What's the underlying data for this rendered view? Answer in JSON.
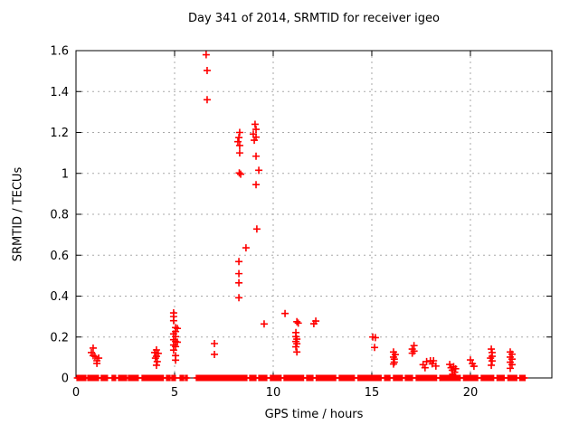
{
  "chart_data": {
    "type": "scatter",
    "title": "Day 341 of 2014, SRMTID for receiver igeo",
    "xlabel": "GPS time / hours",
    "ylabel": "SRMTID / TECUs",
    "xlim": [
      0,
      24.13
    ],
    "ylim": [
      0,
      1.6
    ],
    "xticks": [
      {
        "value": 0,
        "label": "0"
      },
      {
        "value": 5,
        "label": "5"
      },
      {
        "value": 10,
        "label": "10"
      },
      {
        "value": 15,
        "label": "15"
      },
      {
        "value": 20,
        "label": "20"
      }
    ],
    "yticks": [
      {
        "value": 0.0,
        "label": "0"
      },
      {
        "value": 0.2,
        "label": "0.2"
      },
      {
        "value": 0.4,
        "label": "0.4"
      },
      {
        "value": 0.6,
        "label": "0.6"
      },
      {
        "value": 0.8,
        "label": "0.8"
      },
      {
        "value": 1.0,
        "label": "1"
      },
      {
        "value": 1.2,
        "label": "1.2"
      },
      {
        "value": 1.4,
        "label": "1.4"
      },
      {
        "value": 1.6,
        "label": "1.6"
      }
    ],
    "grid": true,
    "legend": "none",
    "marker": "plus",
    "colors": {
      "marker": "#ff0000",
      "grid": "#a8a8a8",
      "axis": "#000000",
      "text": "#000000",
      "background": "#ffffff"
    },
    "series": [
      {
        "name": "SRMTID",
        "points": [
          [
            0.87,
            0.146
          ],
          [
            0.78,
            0.124
          ],
          [
            0.87,
            0.109
          ],
          [
            0.96,
            0.105
          ],
          [
            1.15,
            0.097
          ],
          [
            1.06,
            0.084
          ],
          [
            1.06,
            0.071
          ],
          [
            4.08,
            0.137
          ],
          [
            3.99,
            0.124
          ],
          [
            4.17,
            0.12
          ],
          [
            4.08,
            0.106
          ],
          [
            4.03,
            0.097
          ],
          [
            4.12,
            0.08
          ],
          [
            4.08,
            0.062
          ],
          [
            4.95,
            0.318
          ],
          [
            4.95,
            0.3
          ],
          [
            4.95,
            0.28
          ],
          [
            5.05,
            0.246
          ],
          [
            5.14,
            0.242
          ],
          [
            5.05,
            0.227
          ],
          [
            4.95,
            0.215
          ],
          [
            5.05,
            0.202
          ],
          [
            4.95,
            0.187
          ],
          [
            5.05,
            0.178
          ],
          [
            5.14,
            0.175
          ],
          [
            4.95,
            0.161
          ],
          [
            5.05,
            0.153
          ],
          [
            4.95,
            0.136
          ],
          [
            5.05,
            0.109
          ],
          [
            5.05,
            0.087
          ],
          [
            6.6,
            1.58
          ],
          [
            6.65,
            1.503
          ],
          [
            6.65,
            1.36
          ],
          [
            7.02,
            0.168
          ],
          [
            7.02,
            0.115
          ],
          [
            8.3,
            1.2
          ],
          [
            8.26,
            1.175
          ],
          [
            8.21,
            1.155
          ],
          [
            8.3,
            1.136
          ],
          [
            8.3,
            1.1
          ],
          [
            8.28,
            1.002
          ],
          [
            8.35,
            0.996
          ],
          [
            8.26,
            0.569
          ],
          [
            8.26,
            0.51
          ],
          [
            8.26,
            0.465
          ],
          [
            8.26,
            0.392
          ],
          [
            8.62,
            0.636
          ],
          [
            9.08,
            1.24
          ],
          [
            9.13,
            1.215
          ],
          [
            8.99,
            1.192
          ],
          [
            9.13,
            1.177
          ],
          [
            9.04,
            1.162
          ],
          [
            9.13,
            1.084
          ],
          [
            9.27,
            1.015
          ],
          [
            9.13,
            0.945
          ],
          [
            9.17,
            0.728
          ],
          [
            9.54,
            0.264
          ],
          [
            10.6,
            0.315
          ],
          [
            11.2,
            0.275
          ],
          [
            11.27,
            0.268
          ],
          [
            11.15,
            0.222
          ],
          [
            11.15,
            0.202
          ],
          [
            11.2,
            0.19
          ],
          [
            11.15,
            0.178
          ],
          [
            11.2,
            0.167
          ],
          [
            11.15,
            0.152
          ],
          [
            11.2,
            0.127
          ],
          [
            12.06,
            0.265
          ],
          [
            12.16,
            0.278
          ],
          [
            15.05,
            0.2
          ],
          [
            15.18,
            0.197
          ],
          [
            15.14,
            0.149
          ],
          [
            16.1,
            0.127
          ],
          [
            16.19,
            0.114
          ],
          [
            16.1,
            0.102
          ],
          [
            16.14,
            0.092
          ],
          [
            16.14,
            0.077
          ],
          [
            16.1,
            0.068
          ],
          [
            17.14,
            0.158
          ],
          [
            17.05,
            0.141
          ],
          [
            17.14,
            0.131
          ],
          [
            17.05,
            0.121
          ],
          [
            17.6,
            0.065
          ],
          [
            17.7,
            0.05
          ],
          [
            17.78,
            0.08
          ],
          [
            17.97,
            0.084
          ],
          [
            18.06,
            0.069
          ],
          [
            18.13,
            0.084
          ],
          [
            18.25,
            0.058
          ],
          [
            18.95,
            0.066
          ],
          [
            19.02,
            0.05
          ],
          [
            19.08,
            0.038
          ],
          [
            19.15,
            0.055
          ],
          [
            19.2,
            0.028
          ],
          [
            19.25,
            0.045
          ],
          [
            19.1,
            0.018
          ],
          [
            20.0,
            0.088
          ],
          [
            20.1,
            0.07
          ],
          [
            20.18,
            0.057
          ],
          [
            21.06,
            0.141
          ],
          [
            21.1,
            0.124
          ],
          [
            21.1,
            0.106
          ],
          [
            21.02,
            0.097
          ],
          [
            21.1,
            0.083
          ],
          [
            21.06,
            0.062
          ],
          [
            22.02,
            0.127
          ],
          [
            22.11,
            0.116
          ],
          [
            22.02,
            0.102
          ],
          [
            22.11,
            0.092
          ],
          [
            22.02,
            0.077
          ],
          [
            22.11,
            0.065
          ],
          [
            22.02,
            0.047
          ]
        ]
      }
    ],
    "baseline_band": {
      "y": 0,
      "step": 0.045,
      "segments": [
        [
          0.05,
          0.5
        ],
        [
          0.6,
          1.15
        ],
        [
          1.28,
          1.61
        ],
        [
          1.83,
          2.02
        ],
        [
          2.16,
          2.57
        ],
        [
          2.66,
          3.17
        ],
        [
          3.35,
          4.45
        ],
        [
          4.59,
          4.77
        ],
        [
          4.86,
          5.05
        ],
        [
          5.28,
          5.46
        ],
        [
          5.55,
          5.64
        ],
        [
          6.1,
          8.67
        ],
        [
          8.81,
          9.13
        ],
        [
          9.27,
          9.68
        ],
        [
          9.86,
          10.41
        ],
        [
          10.55,
          11.55
        ],
        [
          11.7,
          12.05
        ],
        [
          12.18,
          13.2
        ],
        [
          13.35,
          14.15
        ],
        [
          14.3,
          15.5
        ],
        [
          15.65,
          15.95
        ],
        [
          16.1,
          16.55
        ],
        [
          16.7,
          17.1
        ],
        [
          17.25,
          18.3
        ],
        [
          18.45,
          19.5
        ],
        [
          19.65,
          20.4
        ],
        [
          20.55,
          21.2
        ],
        [
          21.35,
          21.75
        ],
        [
          21.9,
          22.35
        ],
        [
          22.5,
          22.8
        ]
      ]
    }
  }
}
